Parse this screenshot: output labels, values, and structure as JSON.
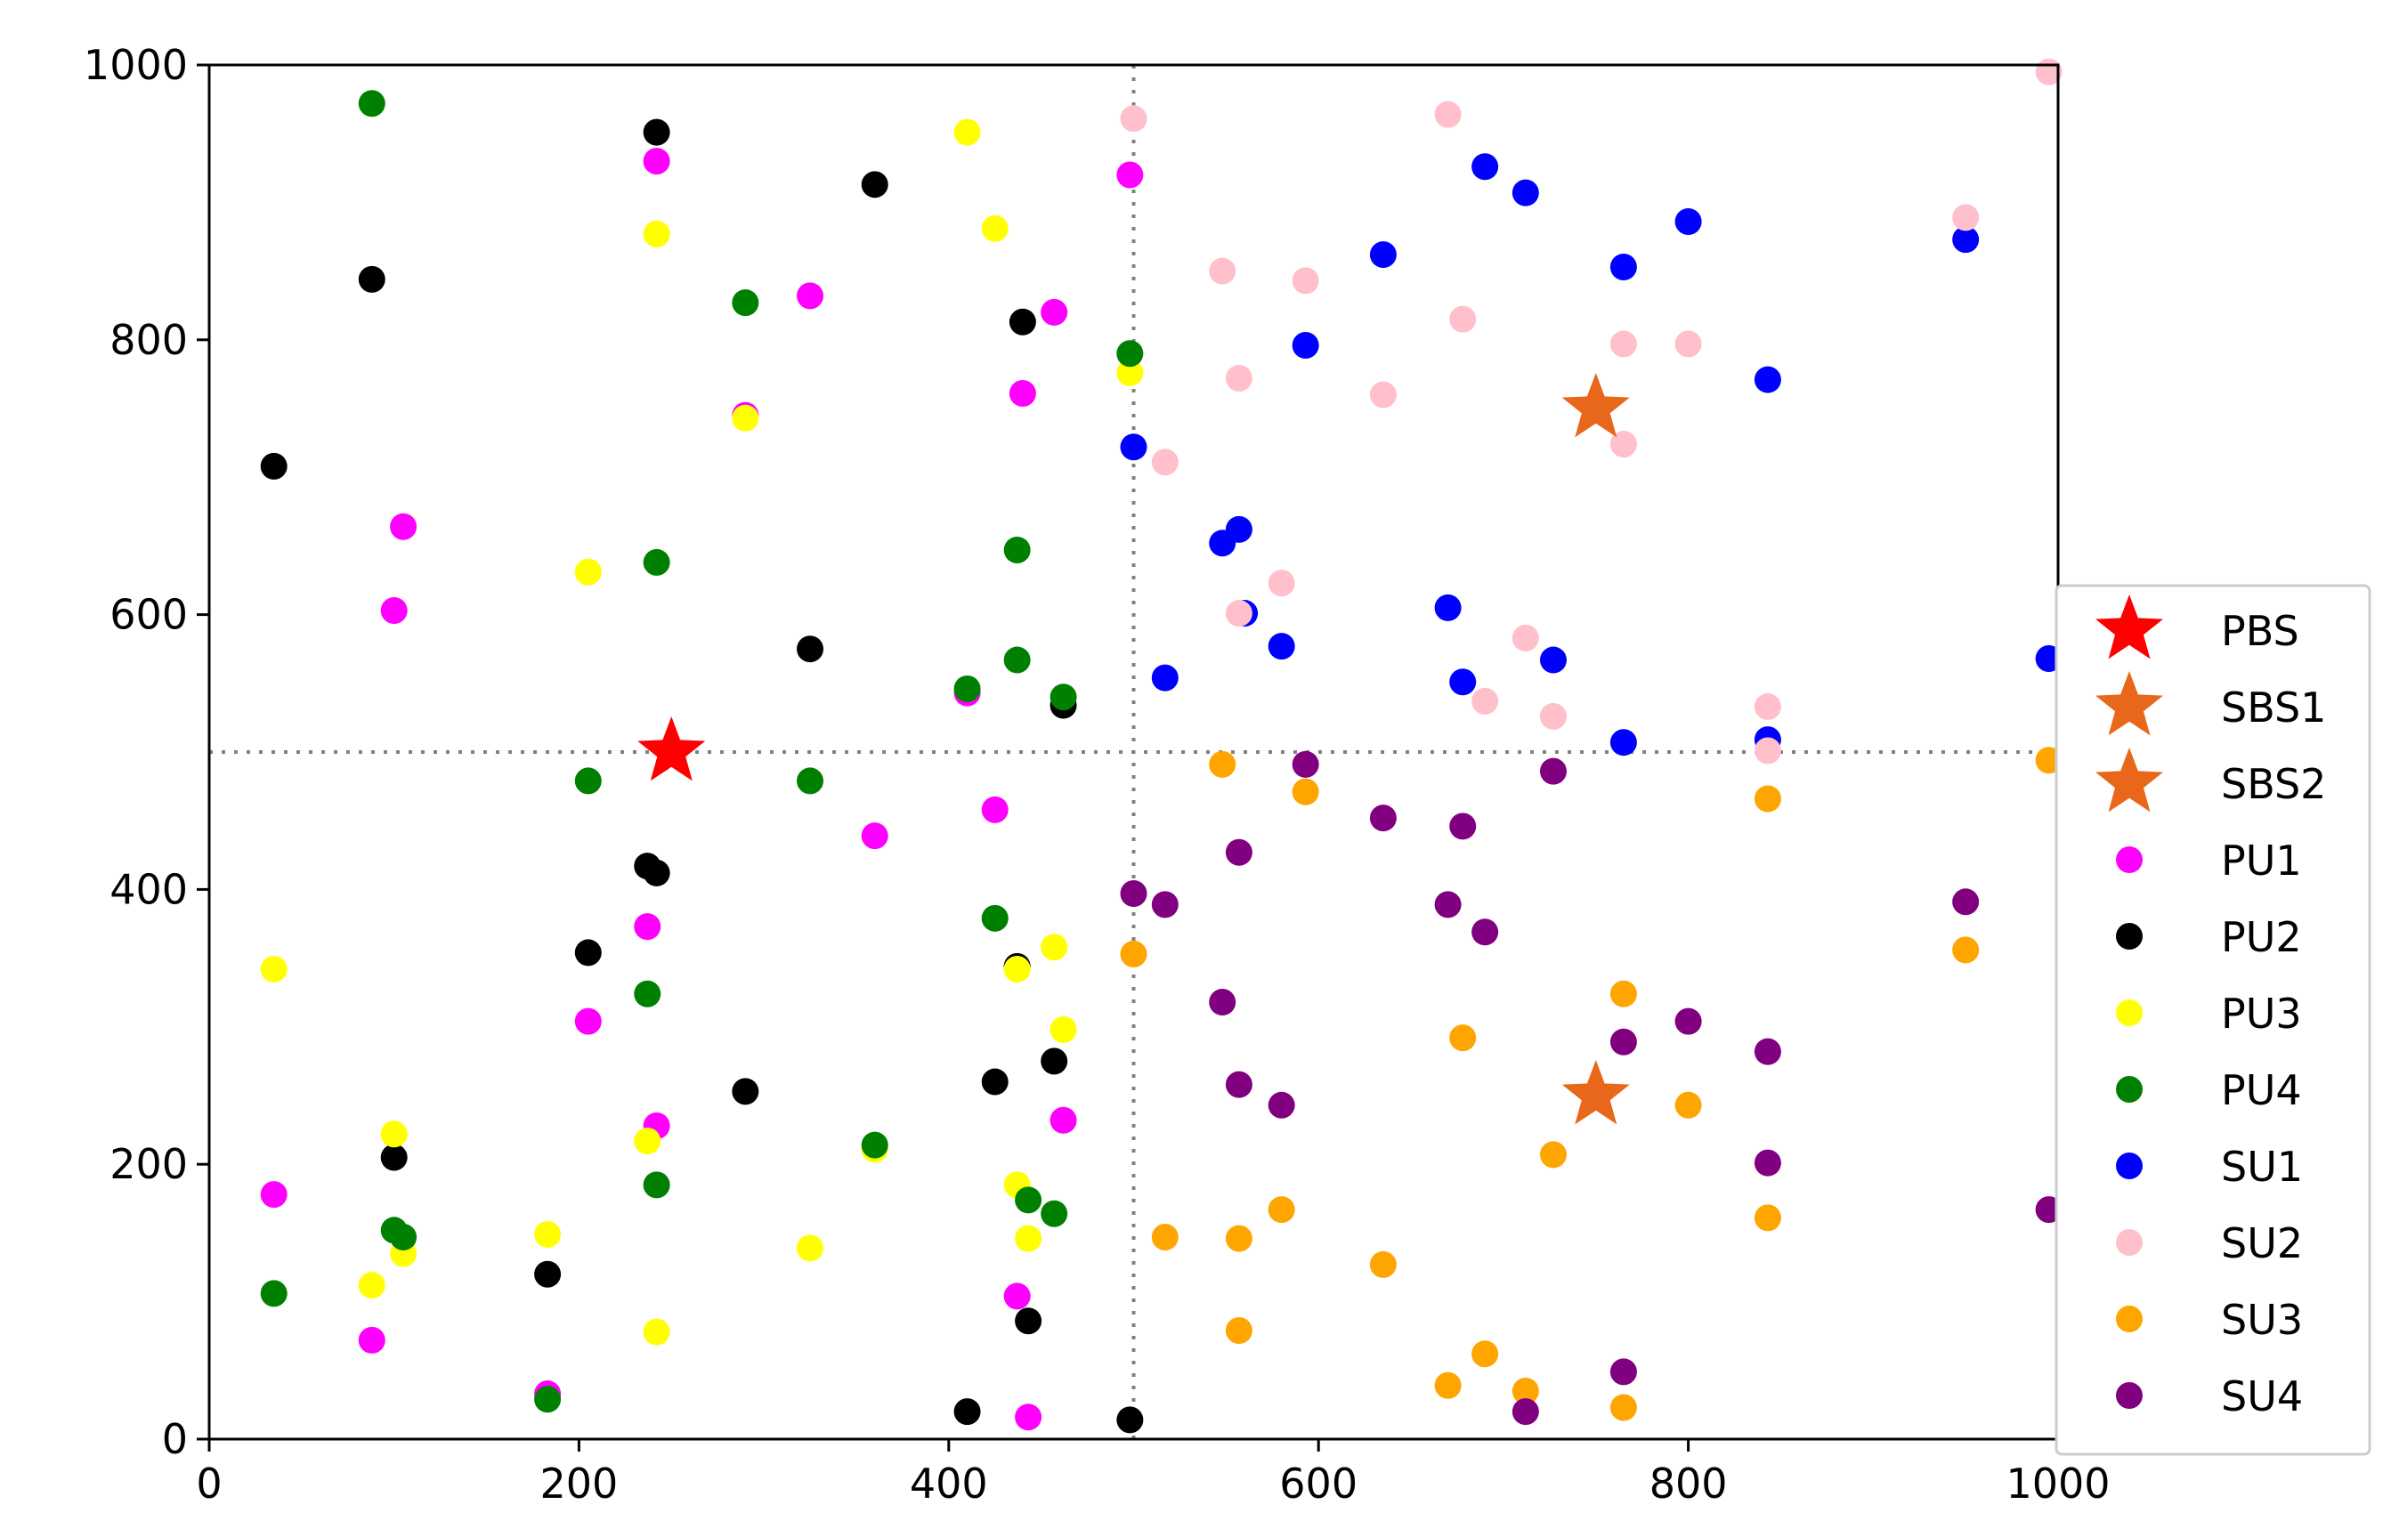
{
  "chart_data": {
    "type": "scatter",
    "title": "",
    "xlabel": "",
    "ylabel": "",
    "xlim": [
      0,
      1000
    ],
    "ylim": [
      0,
      1000
    ],
    "xticks": [
      "0",
      "200",
      "400",
      "600",
      "800",
      "1000"
    ],
    "yticks": [
      "0",
      "200",
      "400",
      "600",
      "800",
      "1000"
    ],
    "grid": false,
    "reference_lines": [
      {
        "orientation": "vertical",
        "value": 500,
        "style": "dotted",
        "color": "#808080"
      },
      {
        "orientation": "horizontal",
        "value": 500,
        "style": "dotted",
        "color": "#808080"
      }
    ],
    "legend": {
      "placement": "right",
      "entries": [
        "PBS",
        "SBS1",
        "SBS2",
        "PU1",
        "PU2",
        "PU3",
        "PU4",
        "SU1",
        "SU2",
        "SU3",
        "SU4"
      ]
    },
    "series": [
      {
        "name": "PBS",
        "marker": "star",
        "color": "#ff0000",
        "points": [
          [
            250,
            500
          ]
        ]
      },
      {
        "name": "SBS1",
        "marker": "star",
        "color": "#e8671b",
        "points": [
          [
            750,
            750
          ]
        ]
      },
      {
        "name": "SBS2",
        "marker": "star",
        "color": "#e8671b",
        "points": [
          [
            750,
            250
          ]
        ]
      },
      {
        "name": "PU1",
        "marker": "circle",
        "color": "#ff00ff",
        "points": [
          [
            242,
            930
          ],
          [
            498,
            920
          ],
          [
            325,
            832
          ],
          [
            457,
            820
          ],
          [
            440,
            761
          ],
          [
            290,
            745
          ],
          [
            105,
            664
          ],
          [
            100,
            603
          ],
          [
            410,
            543
          ],
          [
            425,
            458
          ],
          [
            360,
            439
          ],
          [
            237,
            373
          ],
          [
            205,
            304
          ],
          [
            462,
            232
          ],
          [
            242,
            228
          ],
          [
            35,
            178
          ],
          [
            437,
            104
          ],
          [
            88,
            72
          ],
          [
            183,
            33
          ],
          [
            443,
            16
          ]
        ]
      },
      {
        "name": "PU2",
        "marker": "circle",
        "color": "#000000",
        "points": [
          [
            242,
            951
          ],
          [
            360,
            913
          ],
          [
            88,
            844
          ],
          [
            440,
            813
          ],
          [
            35,
            708
          ],
          [
            325,
            575
          ],
          [
            462,
            534
          ],
          [
            237,
            417
          ],
          [
            242,
            412
          ],
          [
            205,
            354
          ],
          [
            437,
            344
          ],
          [
            457,
            275
          ],
          [
            425,
            260
          ],
          [
            290,
            253
          ],
          [
            100,
            205
          ],
          [
            183,
            120
          ],
          [
            443,
            86
          ],
          [
            410,
            20
          ],
          [
            498,
            14
          ]
        ]
      },
      {
        "name": "PU3",
        "marker": "circle",
        "color": "#ffff00",
        "points": [
          [
            410,
            951
          ],
          [
            242,
            877
          ],
          [
            425,
            881
          ],
          [
            498,
            776
          ],
          [
            290,
            743
          ],
          [
            205,
            631
          ],
          [
            457,
            358
          ],
          [
            437,
            342
          ],
          [
            35,
            342
          ],
          [
            462,
            298
          ],
          [
            100,
            222
          ],
          [
            237,
            217
          ],
          [
            360,
            211
          ],
          [
            437,
            185
          ],
          [
            183,
            149
          ],
          [
            443,
            146
          ],
          [
            325,
            139
          ],
          [
            105,
            135
          ],
          [
            88,
            112
          ],
          [
            242,
            78
          ]
        ]
      },
      {
        "name": "PU4",
        "marker": "circle",
        "color": "#008000",
        "points": [
          [
            88,
            972
          ],
          [
            290,
            827
          ],
          [
            498,
            790
          ],
          [
            437,
            647
          ],
          [
            242,
            638
          ],
          [
            410,
            546
          ],
          [
            437,
            567
          ],
          [
            462,
            540
          ],
          [
            205,
            479
          ],
          [
            325,
            479
          ],
          [
            425,
            379
          ],
          [
            237,
            324
          ],
          [
            360,
            214
          ],
          [
            242,
            185
          ],
          [
            443,
            174
          ],
          [
            457,
            164
          ],
          [
            100,
            152
          ],
          [
            105,
            147
          ],
          [
            35,
            106
          ],
          [
            183,
            29
          ]
        ]
      },
      {
        "name": "SU1",
        "marker": "circle",
        "color": "#0000ff",
        "points": [
          [
            690,
            926
          ],
          [
            712,
            907
          ],
          [
            800,
            886
          ],
          [
            950,
            873
          ],
          [
            635,
            862
          ],
          [
            765,
            853
          ],
          [
            593,
            796
          ],
          [
            843,
            771
          ],
          [
            500,
            722
          ],
          [
            557,
            662
          ],
          [
            548,
            652
          ],
          [
            670,
            605
          ],
          [
            560,
            601
          ],
          [
            580,
            577
          ],
          [
            995,
            568
          ],
          [
            727,
            567
          ],
          [
            517,
            554
          ],
          [
            678,
            551
          ],
          [
            843,
            509
          ],
          [
            765,
            507
          ]
        ]
      },
      {
        "name": "SU2",
        "marker": "circle",
        "color": "#ffc0cb",
        "points": [
          [
            995,
            995
          ],
          [
            670,
            964
          ],
          [
            500,
            961
          ],
          [
            950,
            889
          ],
          [
            548,
            850
          ],
          [
            593,
            843
          ],
          [
            678,
            815
          ],
          [
            765,
            797
          ],
          [
            800,
            797
          ],
          [
            557,
            772
          ],
          [
            635,
            760
          ],
          [
            765,
            724
          ],
          [
            517,
            711
          ],
          [
            580,
            623
          ],
          [
            557,
            601
          ],
          [
            712,
            583
          ],
          [
            690,
            537
          ],
          [
            843,
            533
          ],
          [
            727,
            526
          ],
          [
            843,
            501
          ]
        ]
      },
      {
        "name": "SU3",
        "marker": "circle",
        "color": "#ffa500",
        "points": [
          [
            995,
            494
          ],
          [
            548,
            491
          ],
          [
            593,
            471
          ],
          [
            843,
            466
          ],
          [
            500,
            353
          ],
          [
            950,
            356
          ],
          [
            765,
            324
          ],
          [
            678,
            292
          ],
          [
            800,
            243
          ],
          [
            727,
            207
          ],
          [
            580,
            167
          ],
          [
            843,
            161
          ],
          [
            517,
            147
          ],
          [
            557,
            146
          ],
          [
            635,
            127
          ],
          [
            557,
            79
          ],
          [
            690,
            62
          ],
          [
            670,
            39
          ],
          [
            712,
            35
          ],
          [
            765,
            23
          ]
        ]
      },
      {
        "name": "SU4",
        "marker": "circle",
        "color": "#800080",
        "points": [
          [
            593,
            491
          ],
          [
            727,
            486
          ],
          [
            635,
            452
          ],
          [
            678,
            446
          ],
          [
            557,
            427
          ],
          [
            500,
            397
          ],
          [
            517,
            389
          ],
          [
            670,
            389
          ],
          [
            950,
            391
          ],
          [
            690,
            369
          ],
          [
            548,
            318
          ],
          [
            800,
            304
          ],
          [
            765,
            289
          ],
          [
            843,
            282
          ],
          [
            557,
            258
          ],
          [
            580,
            243
          ],
          [
            843,
            201
          ],
          [
            995,
            167
          ],
          [
            765,
            49
          ],
          [
            712,
            20
          ]
        ]
      }
    ]
  }
}
